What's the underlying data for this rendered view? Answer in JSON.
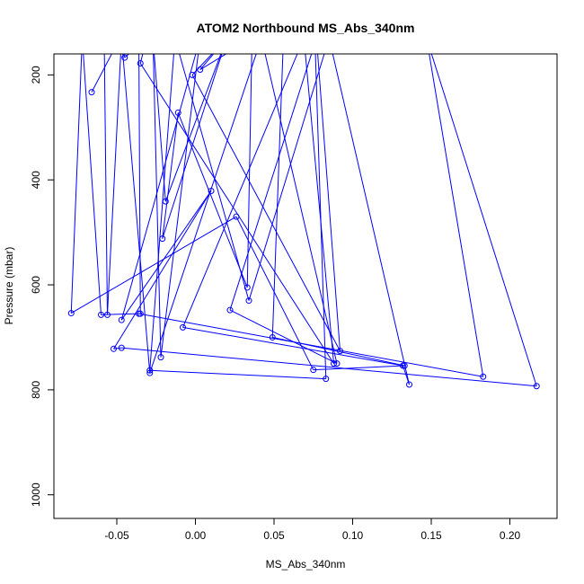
{
  "chart_data": {
    "type": "line",
    "title": "ATOM2 Northbound MS_Abs_340nm",
    "xlabel": "MS_Abs_340nm",
    "ylabel": "Pressure (mbar)",
    "xlim": [
      -0.09,
      0.23
    ],
    "ylim": [
      1045,
      160
    ],
    "y_inverted": true,
    "x_ticks": [
      {
        "value": -0.05,
        "label": "-0.05"
      },
      {
        "value": 0.0,
        "label": "0.00"
      },
      {
        "value": 0.05,
        "label": "0.05"
      },
      {
        "value": 0.1,
        "label": "0.10"
      },
      {
        "value": 0.15,
        "label": "0.15"
      },
      {
        "value": 0.2,
        "label": "0.20"
      }
    ],
    "y_ticks": [
      {
        "value": 200,
        "label": "200"
      },
      {
        "value": 400,
        "label": "400"
      },
      {
        "value": 600,
        "label": "600"
      },
      {
        "value": 800,
        "label": "800"
      },
      {
        "value": 1000,
        "label": "1000"
      }
    ],
    "grid": false,
    "colors": {
      "series": "#0000ff",
      "axes": "#000000",
      "background": "#ffffff"
    },
    "series": [
      {
        "marker": "open-circle",
        "points": [
          {
            "x": -0.066,
            "y": 233
          },
          {
            "x": -0.048,
            "y": 130,
            "marker": false
          },
          {
            "x": -0.045,
            "y": 167
          },
          {
            "x": -0.031,
            "y": 130,
            "marker": false
          },
          {
            "x": -0.035,
            "y": 178
          },
          {
            "x": 0.088,
            "y": 750
          },
          {
            "x": 0.069,
            "y": 130,
            "marker": false
          },
          {
            "x": -0.008,
            "y": 681
          },
          {
            "x": 0.132,
            "y": 754
          },
          {
            "x": 0.136,
            "y": 790
          },
          {
            "x": 0.085,
            "y": 130,
            "marker": false
          },
          {
            "x": 0.034,
            "y": 630
          },
          {
            "x": -0.013,
            "y": 130,
            "marker": false
          },
          {
            "x": -0.029,
            "y": 763
          },
          {
            "x": 0.083,
            "y": 779
          },
          {
            "x": 0.076,
            "y": 130,
            "marker": false
          },
          {
            "x": 0.056,
            "y": 130,
            "marker": false
          },
          {
            "x": 0.049,
            "y": 700
          },
          {
            "x": 0.133,
            "y": 754
          },
          {
            "x": 0.075,
            "y": 762
          },
          {
            "x": 0.026,
            "y": 470
          },
          {
            "x": -0.079,
            "y": 654
          },
          {
            "x": -0.072,
            "y": 130,
            "marker": false
          },
          {
            "x": -0.06,
            "y": 657
          },
          {
            "x": -0.036,
            "y": 655
          },
          {
            "x": 0.183,
            "y": 775
          },
          {
            "x": 0.147,
            "y": 130,
            "marker": false
          },
          {
            "x": 0.217,
            "y": 793
          },
          {
            "x": -0.047,
            "y": 720
          },
          {
            "x": -0.052,
            "y": 722
          },
          {
            "x": 0.01,
            "y": 421
          },
          {
            "x": -0.047,
            "y": 667
          },
          {
            "x": 0.003,
            "y": 130,
            "marker": false
          },
          {
            "x": -0.022,
            "y": 738
          },
          {
            "x": -0.027,
            "y": 130,
            "marker": false
          },
          {
            "x": -0.019,
            "y": 441
          },
          {
            "x": 0.02,
            "y": 130,
            "marker": false
          },
          {
            "x": -0.021,
            "y": 512
          },
          {
            "x": -0.011,
            "y": 272
          },
          {
            "x": 0.033,
            "y": 605
          },
          {
            "x": 0.036,
            "y": 130,
            "marker": false
          },
          {
            "x": 0.003,
            "y": 190
          },
          {
            "x": 0.02,
            "y": 130,
            "marker": false
          },
          {
            "x": -0.002,
            "y": 200
          },
          {
            "x": 0.092,
            "y": 726
          },
          {
            "x": 0.077,
            "y": 130,
            "marker": false
          },
          {
            "x": 0.022,
            "y": 648
          },
          {
            "x": 0.09,
            "y": 750
          },
          {
            "x": 0.042,
            "y": 130,
            "marker": false
          },
          {
            "x": -0.029,
            "y": 768
          },
          {
            "x": -0.047,
            "y": 130,
            "marker": false
          },
          {
            "x": -0.056,
            "y": 657
          },
          {
            "x": -0.058,
            "y": 130,
            "marker": false
          },
          {
            "x": -0.036,
            "y": 130,
            "marker": false
          },
          {
            "x": -0.035,
            "y": 655
          }
        ]
      }
    ]
  }
}
